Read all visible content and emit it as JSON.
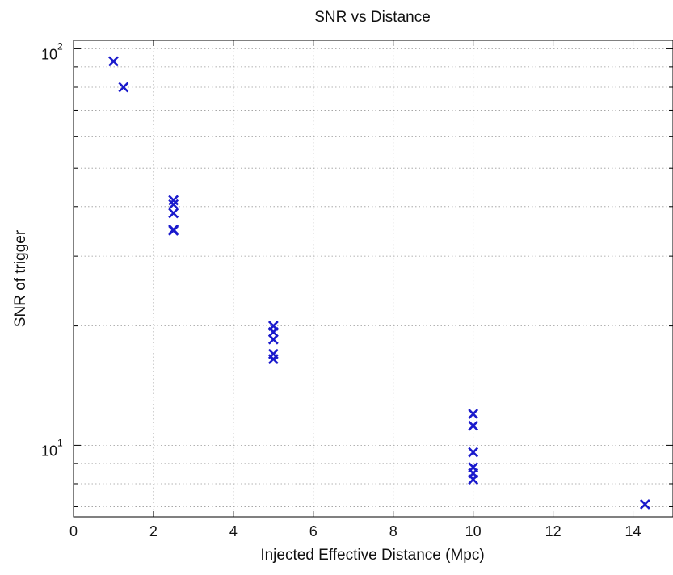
{
  "chart_data": {
    "type": "scatter",
    "title": "SNR vs Distance",
    "xlabel": "Injected Effective Distance (Mpc)",
    "ylabel": "SNR of trigger",
    "xlim": [
      0,
      15
    ],
    "ylim": [
      6.6,
      105
    ],
    "yscale": "log",
    "grid": true,
    "x_ticks": [
      "0",
      "2",
      "4",
      "6",
      "8",
      "10",
      "12",
      "14"
    ],
    "y_ticks": [
      {
        "base": "10",
        "exp": "1",
        "value": 10
      },
      {
        "base": "10",
        "exp": "2",
        "value": 100
      }
    ],
    "marker": "x",
    "marker_color": "#1a1acc",
    "series": [
      {
        "x": [
          1.0,
          1.25,
          2.5,
          2.5,
          2.5,
          2.5,
          2.5,
          5.0,
          5.0,
          5.0,
          5.0,
          5.0,
          10.0,
          10.0,
          10.0,
          10.0,
          10.0,
          10.0,
          14.3
        ],
        "y": [
          93,
          80,
          41.5,
          40.5,
          38.5,
          35,
          34.8,
          20,
          19.3,
          18.5,
          17,
          16.5,
          12,
          11.2,
          9.6,
          8.8,
          8.5,
          8.2,
          7.1
        ]
      }
    ]
  }
}
